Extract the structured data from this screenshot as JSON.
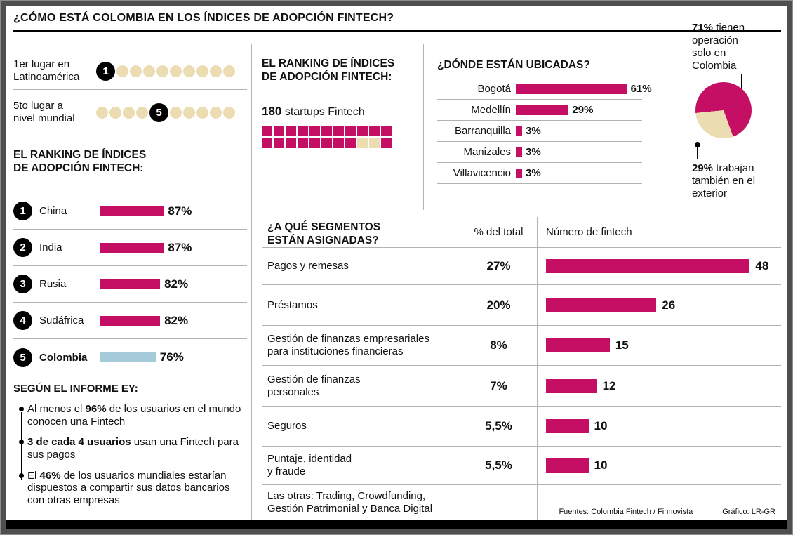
{
  "page": {
    "title": "¿CÓMO ESTÁ COLOMBIA EN LOS ÍNDICES DE ADOPCIÓN FINTECH?",
    "footer_sources": "Fuentes: Colombia Fintech / Finnovista",
    "footer_credit": "Gráfico: LR-GR"
  },
  "colors": {
    "accent_pink": "#c50f64",
    "beige": "#ecdcb2",
    "light_blue": "#a6cbd8"
  },
  "positions": {
    "latam": {
      "label": "1er lugar en\nLatinoamérica",
      "rank": 1,
      "total": 10
    },
    "world": {
      "label": "5to lugar a\nnivel mundial",
      "rank": 5,
      "total": 10
    }
  },
  "ranking": {
    "heading": "EL RANKING DE ÍNDICES\nDE ADOPCIÓN FINTECH:",
    "items": [
      {
        "rank": 1,
        "country": "China",
        "pct": 87,
        "value": "87%",
        "color": "pink",
        "bold": false
      },
      {
        "rank": 2,
        "country": "India",
        "pct": 87,
        "value": "87%",
        "color": "pink",
        "bold": false
      },
      {
        "rank": 3,
        "country": "Rusia",
        "pct": 82,
        "value": "82%",
        "color": "pink",
        "bold": false
      },
      {
        "rank": 4,
        "country": "Sudáfrica",
        "pct": 82,
        "value": "82%",
        "color": "pink",
        "bold": false
      },
      {
        "rank": 5,
        "country": "Colombia",
        "pct": 76,
        "value": "76%",
        "color": "blue",
        "bold": true
      }
    ]
  },
  "ey_report": {
    "heading": "SEGÚN EL INFORME EY:",
    "bullets": [
      [
        {
          "t": "Al menos el "
        },
        {
          "t": "96%",
          "b": true
        },
        {
          "t": " de los usuarios en el mundo conocen una Fintech"
        }
      ],
      [
        {
          "t": "3 de cada 4 usuarios",
          "b": true
        },
        {
          "t": " usan una Fintech para sus pagos"
        }
      ],
      [
        {
          "t": "El "
        },
        {
          "t": "46%",
          "b": true
        },
        {
          "t": " de los usuarios mundiales estarían dispuestos a compartir sus datos bancarios con otras empresas"
        }
      ]
    ]
  },
  "startups": {
    "heading": "EL RANKING DE ÍNDICES\nDE ADOPCIÓN FINTECH:",
    "count": "180",
    "label": "startups Fintech",
    "waffle": [
      "P",
      "P",
      "P",
      "P",
      "P",
      "P",
      "P",
      "P",
      "P",
      "P",
      "P",
      "P",
      "P",
      "P",
      "P",
      "P",
      "P",
      "P",
      "P",
      "B",
      "B",
      "P"
    ]
  },
  "locations": {
    "heading": "¿DÓNDE ESTÁN UBICADAS?",
    "items": [
      {
        "city": "Bogotá",
        "pct": 61,
        "value": "61%"
      },
      {
        "city": "Medellín",
        "pct": 29,
        "value": "29%"
      },
      {
        "city": "Barranquilla",
        "pct": 3,
        "value": "3%"
      },
      {
        "city": "Manizales",
        "pct": 3,
        "value": "3%"
      },
      {
        "city": "Villavicencio",
        "pct": 3,
        "value": "3%"
      }
    ]
  },
  "pie": {
    "values": [
      71,
      29
    ],
    "top": [
      {
        "t": "71%",
        "b": true
      },
      {
        "t": " tienen operación solo en Colombia"
      }
    ],
    "bottom": [
      {
        "t": "29%",
        "b": true
      },
      {
        "t": " trabajan también en el exterior"
      }
    ]
  },
  "segments": {
    "heading": "¿A QUÉ SEGMENTOS\nESTÁN ASIGNADAS?",
    "col_pct": "% del total",
    "col_count": "Número de fintech",
    "rows": [
      {
        "label": "Pagos y remesas",
        "pct": "27%",
        "count": 48
      },
      {
        "label": "Préstamos",
        "pct": "20%",
        "count": 26
      },
      {
        "label": "Gestión de finanzas empresariales\npara instituciones financieras",
        "pct": "8%",
        "count": 15
      },
      {
        "label": "Gestión de finanzas\npersonales",
        "pct": "7%",
        "count": 12
      },
      {
        "label": "Seguros",
        "pct": "5,5%",
        "count": 10
      },
      {
        "label": "Puntaje, identidad\ny fraude",
        "pct": "5,5%",
        "count": 10
      }
    ],
    "others": "Las otras: Trading, Crowdfunding,\nGestión Patrimonial y Banca Digital"
  },
  "chart_data": [
    {
      "type": "bar",
      "title": "EL RANKING DE ÍNDICES DE ADOPCIÓN FINTECH",
      "categories": [
        "China",
        "India",
        "Rusia",
        "Sudáfrica",
        "Colombia"
      ],
      "values": [
        87,
        87,
        82,
        82,
        76
      ],
      "unit": "%",
      "note": "Colombia resaltada en azul; 1er lugar en Latinoamérica, 5to lugar a nivel mundial"
    },
    {
      "type": "bar",
      "title": "¿DÓNDE ESTÁN UBICADAS?",
      "categories": [
        "Bogotá",
        "Medellín",
        "Barranquilla",
        "Manizales",
        "Villavicencio"
      ],
      "values": [
        61,
        29,
        3,
        3,
        3
      ],
      "unit": "%"
    },
    {
      "type": "pie",
      "title": "Operación de las fintech",
      "labels": [
        "Tienen operación solo en Colombia",
        "Trabajan también en el exterior"
      ],
      "values": [
        71,
        29
      ],
      "unit": "%"
    },
    {
      "type": "bar",
      "title": "¿A QUÉ SEGMENTOS ESTÁN ASIGNADAS?",
      "categories": [
        "Pagos y remesas",
        "Préstamos",
        "Gestión de finanzas empresariales para instituciones financieras",
        "Gestión de finanzas personales",
        "Seguros",
        "Puntaje, identidad y fraude"
      ],
      "series": [
        {
          "name": "% del total",
          "values": [
            27,
            20,
            8,
            7,
            5.5,
            5.5
          ]
        },
        {
          "name": "Número de fintech",
          "values": [
            48,
            26,
            15,
            12,
            10,
            10
          ]
        }
      ],
      "note": "Las otras: Trading, Crowdfunding, Gestión Patrimonial y Banca Digital. Total: 180 startups Fintech"
    }
  ]
}
